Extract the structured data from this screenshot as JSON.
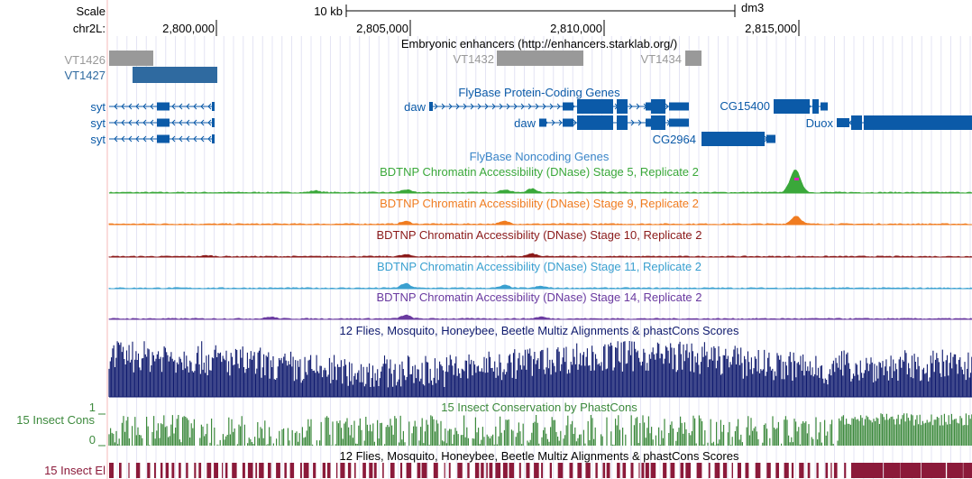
{
  "ruler": {
    "scale_label": "Scale",
    "chrom_label": "chr2L:",
    "scale_bar_label": "10 kb",
    "assembly": "dm3",
    "positions": [
      "2,800,000",
      "2,805,000",
      "2,810,000",
      "2,815,000"
    ]
  },
  "tracks": {
    "enhancers": {
      "title": "Embryonic enhancers (http://enhancers.starklab.org/)",
      "items": [
        {
          "name": "VT1426",
          "color": "#999999"
        },
        {
          "name": "VT1427",
          "color": "#2f6aa0"
        },
        {
          "name": "VT1432",
          "color": "#999999"
        },
        {
          "name": "VT1434",
          "color": "#999999"
        }
      ]
    },
    "protein_coding": {
      "title": "FlyBase Protein-Coding Genes",
      "color": "#0b5aa8",
      "genes": [
        "syt",
        "syt",
        "syt",
        "daw",
        "daw",
        "CG2964",
        "CG15400",
        "Duox"
      ]
    },
    "noncoding": {
      "title": "FlyBase Noncoding Genes",
      "color": "#3a85c8"
    },
    "dnase": [
      {
        "title": "BDTNP Chromatin Accessibility (DNase) Stage 5, Replicate 2",
        "color": "#3aa83a"
      },
      {
        "title": "BDTNP Chromatin Accessibility (DNase) Stage 9, Replicate 2",
        "color": "#f07c20"
      },
      {
        "title": "BDTNP Chromatin Accessibility (DNase) Stage 10, Replicate 2",
        "color": "#8b1a1a"
      },
      {
        "title": "BDTNP Chromatin Accessibility (DNase) Stage 11, Replicate 2",
        "color": "#3aa0d0"
      },
      {
        "title": "BDTNP Chromatin Accessibility (DNase) Stage 14, Replicate 2",
        "color": "#6a3aa0"
      }
    ],
    "multiz": {
      "title": "12 Flies, Mosquito, Honeybee, Beetle Multiz Alignments & phastCons Scores",
      "color": "#0f1a6e"
    },
    "cons": {
      "title": "15 Insect Conservation by PhastCons",
      "side_label": "15 Insect Cons",
      "max": "1",
      "min": "0",
      "color": "#3d8a3d"
    },
    "elements": {
      "title": "12 Flies, Mosquito, Honeybee, Beetle Multiz Alignments & phastCons Scores",
      "side_label": "15 Insect El",
      "color": "#8b1a3a"
    }
  }
}
